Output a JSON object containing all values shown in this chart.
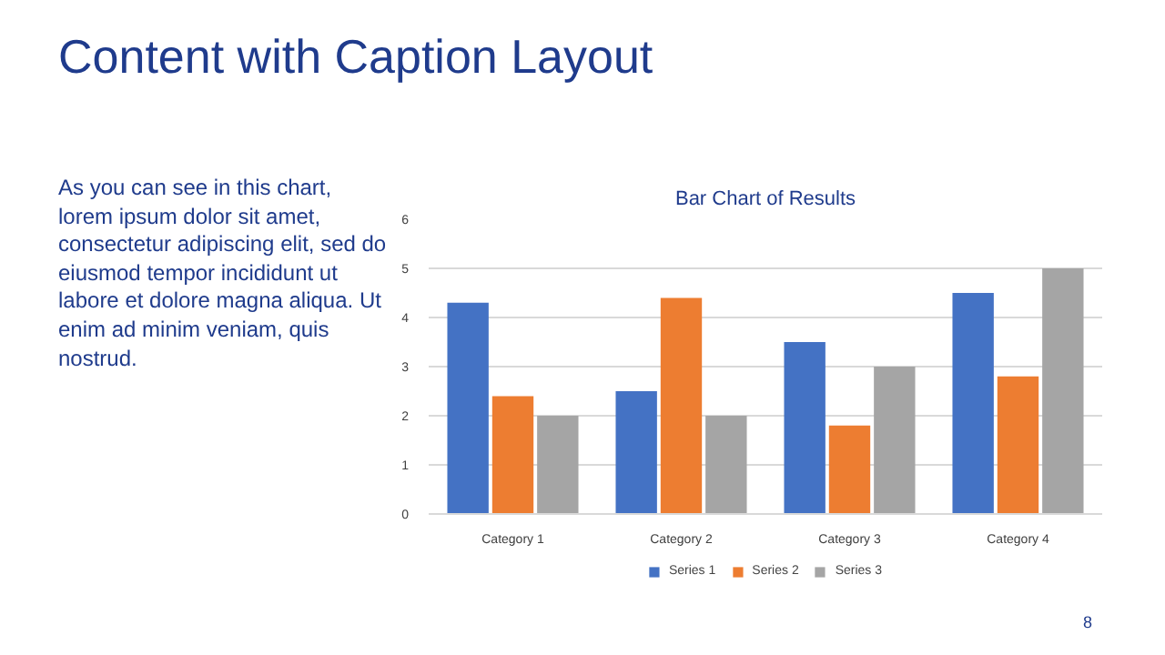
{
  "chart_data": {
    "type": "bar",
    "title": "Bar Chart of Results",
    "annotations": [
      "Content with Caption Layout",
      "As you can see in this chart, lorem ipsum dolor sit amet, consectetur adipiscing elit, sed do eiusmod tempor incididunt ut labore et dolore magna aliqua. Ut enim ad minim veniam, quis nostrud.",
      "8"
    ],
    "categories": [
      "Category 1",
      "Category 2",
      "Category 3",
      "Category 4"
    ],
    "series": [
      {
        "name": "Series 1",
        "color": "#4472c4",
        "values": [
          4.3,
          2.5,
          3.5,
          4.5
        ]
      },
      {
        "name": "Series 2",
        "color": "#ed7d31",
        "values": [
          2.4,
          4.4,
          1.8,
          2.8
        ]
      },
      {
        "name": "Series 3",
        "color": "#a5a5a5",
        "values": [
          2,
          2,
          3,
          5
        ]
      }
    ],
    "ylim": [
      0,
      6
    ],
    "yticks": [
      0,
      1,
      2,
      3,
      4,
      5,
      6
    ],
    "grid": "y",
    "legend": "bottom"
  }
}
